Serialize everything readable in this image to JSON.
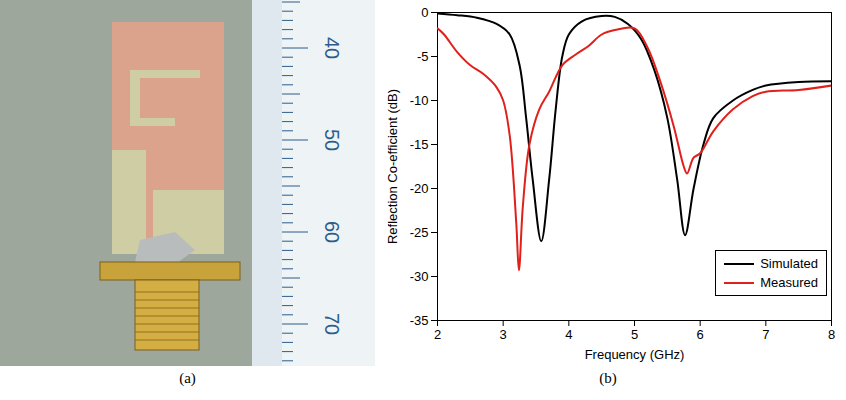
{
  "photo": {
    "caption": "(a)",
    "ruler_labels": [
      40,
      50,
      60,
      70
    ]
  },
  "chart_data": {
    "type": "line",
    "caption": "(b)",
    "x_label": "Frequency (GHz)",
    "y_label": "Reflection Co-efficient (dB)",
    "xlim": [
      2,
      8
    ],
    "xticks": [
      2,
      3,
      4,
      5,
      6,
      7,
      8
    ],
    "ylim": [
      -35,
      0
    ],
    "yticks": [
      -35,
      -30,
      -25,
      -20,
      -15,
      -10,
      -5,
      0
    ],
    "grid": false,
    "legend": "lower right",
    "series": [
      {
        "name": "Simulated",
        "color": "#000000",
        "x": [
          2,
          2.3,
          2.6,
          2.9,
          3.1,
          3.25,
          3.35,
          3.45,
          3.58,
          3.7,
          3.8,
          3.9,
          4.0,
          4.2,
          4.5,
          4.7,
          4.9,
          5.1,
          5.3,
          5.5,
          5.65,
          5.77,
          5.9,
          6.05,
          6.2,
          6.5,
          6.8,
          7.0,
          7.5,
          8.0
        ],
        "values": [
          -0.1,
          -0.3,
          -0.6,
          -1.3,
          -2.5,
          -6,
          -12,
          -19,
          -26,
          -19,
          -11,
          -5,
          -2.5,
          -1,
          -0.4,
          -0.5,
          -1.3,
          -3,
          -6.5,
          -12,
          -19,
          -25.3,
          -20,
          -15,
          -12,
          -10,
          -8.8,
          -8.3,
          -7.9,
          -7.8
        ]
      },
      {
        "name": "Measured",
        "color": "#e0201b",
        "x": [
          2,
          2.1,
          2.3,
          2.5,
          2.7,
          2.9,
          3.0,
          3.1,
          3.2,
          3.24,
          3.3,
          3.4,
          3.55,
          3.7,
          3.9,
          4.1,
          4.3,
          4.5,
          4.7,
          5.0,
          5.2,
          5.4,
          5.6,
          5.75,
          5.8,
          5.9,
          6.0,
          6.2,
          6.5,
          6.8,
          7.0,
          7.5,
          8.0
        ],
        "values": [
          -1.8,
          -2.5,
          -4.5,
          -6,
          -7,
          -8.5,
          -10,
          -14,
          -24,
          -29.3,
          -22,
          -15,
          -11,
          -9,
          -6,
          -4.8,
          -3.8,
          -2.5,
          -2,
          -1.8,
          -4,
          -8,
          -13,
          -17.5,
          -18.3,
          -16.5,
          -16,
          -13.5,
          -11,
          -9.5,
          -9,
          -8.8,
          -8.3
        ]
      }
    ]
  }
}
